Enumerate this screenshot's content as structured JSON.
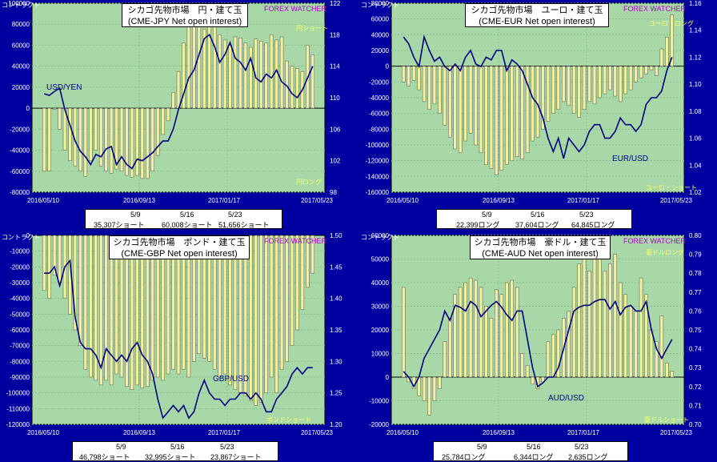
{
  "ylabel": "コントラクト",
  "watermark": "FOREX WATCHER",
  "colors": {
    "bg": "#0000a0",
    "plot": "#a8d8a8",
    "bar": "#f0f0a0",
    "line": "#000080",
    "grid": "#88c088"
  },
  "charts": [
    {
      "title1": "シカゴ先物市場　円・建て玉",
      "title2": "(CME-JPY Net open interest)",
      "series_label": "USD/YEN",
      "top_label": "円ショート",
      "bottom_label": "円ロング",
      "dates": [
        "5/9",
        "5/16",
        "5/23"
      ],
      "values": [
        "35,307ショート",
        "60,008ショート",
        "51,656ショート"
      ]
    },
    {
      "title1": "シカゴ先物市場　ユーロ・建て玉",
      "title2": "(CME-EUR Net open interest)",
      "series_label": "EUR/USD",
      "top_label": "ユーロ・ロング",
      "bottom_label": "ユーロ・ショート",
      "dates": [
        "5/9",
        "5/16",
        "5/23"
      ],
      "values": [
        "22,399ロング",
        "37,604ロング",
        "64,845ロング"
      ]
    },
    {
      "title1": "シカゴ先物市場　ポンド・建て玉",
      "title2": "(CME-GBP Net open interest)",
      "series_label": "GBP/USD",
      "top_label": "",
      "bottom_label": "ポンドショート",
      "dates": [
        "5/9",
        "5/16",
        "5/23"
      ],
      "values": [
        "46,798ショート",
        "32,995ショート",
        "23,867ショート"
      ]
    },
    {
      "title1": "シカゴ先物市場　豪ドル・建て玉",
      "title2": "(CME-AUD Net open interest)",
      "series_label": "AUD/USD",
      "top_label": "豪ドルロング",
      "bottom_label": "豪ドルショート",
      "dates": [
        "5/9",
        "5/16",
        "5/23"
      ],
      "values": [
        "25,784ロング",
        "6,344ロング",
        "2,635ロング"
      ]
    }
  ],
  "chart_data": [
    {
      "type": "bar",
      "title": "シカゴ先物市場　円・建て玉 (CME-JPY Net open interest)",
      "x_tick_labels": [
        "2016/05/10",
        "2016/09/13",
        "2017/01/17",
        "2017/05/23"
      ],
      "y_ticks": [
        "100000",
        "80000",
        "60000",
        "40000",
        "20000",
        "0",
        "-20000",
        "-40000",
        "-60000",
        "-80000"
      ],
      "y_right_ticks": [
        "122",
        "118",
        "114",
        "110",
        "106",
        "102",
        "98"
      ],
      "ylim": [
        -80000,
        100000
      ],
      "y2lim": [
        98,
        122
      ],
      "series": [
        {
          "name": "net_open_interest",
          "axis": "left",
          "values": [
            -60000,
            -60000,
            -1000,
            -20000,
            -40000,
            -50000,
            -55000,
            -60000,
            -65000,
            -50000,
            -40000,
            -55000,
            -60000,
            -62000,
            -58000,
            -60000,
            -64000,
            -66000,
            -64000,
            -67000,
            -67000,
            -60000,
            -45000,
            -25000,
            -12000,
            15000,
            35000,
            62000,
            84000,
            87000,
            85000,
            75000,
            80000,
            82000,
            70000,
            65000,
            60000,
            68000,
            67000,
            62000,
            58000,
            66000,
            64000,
            62000,
            70000,
            65000,
            68000,
            45000,
            40000,
            38000,
            35000,
            60000,
            51000
          ]
        },
        {
          "name": "USD/YEN",
          "axis": "right",
          "values": [
            110.5,
            110.3,
            110.8,
            111.2,
            108.5,
            106.5,
            104.5,
            103.2,
            102.5,
            101.5,
            102.8,
            102.5,
            103.5,
            103.8,
            101.5,
            102.5,
            101.5,
            101.0,
            102.2,
            102.0,
            102.5,
            103.0,
            103.8,
            104.5,
            104.5,
            106.0,
            108.5,
            110.5,
            112.5,
            113.5,
            115.5,
            117.5,
            118.0,
            116.5,
            114.5,
            115.5,
            117.0,
            115.0,
            114.5,
            113.5,
            115.0,
            112.5,
            112.0,
            113.0,
            112.5,
            113.5,
            112.0,
            111.5,
            110.5,
            110.0,
            111.0,
            112.5,
            114.0
          ]
        }
      ]
    },
    {
      "type": "bar",
      "title": "シカゴ先物市場　ユーロ・建て玉 (CME-EUR Net open interest)",
      "x_tick_labels": [
        "2016/05/10",
        "2016/09/13",
        "2017/01/17",
        "2017/05/23"
      ],
      "y_ticks": [
        "80000",
        "60000",
        "40000",
        "20000",
        "0",
        "-20000",
        "-40000",
        "-60000",
        "-80000",
        "-100000",
        "-120000",
        "-140000",
        "-160000"
      ],
      "y_right_ticks": [
        "1.16",
        "1.14",
        "1.12",
        "1.10",
        "1.08",
        "1.06",
        "1.04",
        "1.02"
      ],
      "ylim": [
        -160000,
        80000
      ],
      "y2lim": [
        1.02,
        1.16
      ],
      "series": [
        {
          "name": "net_open_interest",
          "axis": "left",
          "values": [
            -20000,
            -25000,
            -18000,
            -30000,
            -45000,
            -55000,
            -48000,
            -60000,
            -75000,
            -90000,
            -105000,
            -110000,
            -95000,
            -85000,
            -100000,
            -110000,
            -125000,
            -130000,
            -138000,
            -132000,
            -125000,
            -120000,
            -115000,
            -118000,
            -110000,
            -95000,
            -90000,
            -80000,
            -70000,
            -60000,
            -55000,
            -45000,
            -50000,
            -60000,
            -65000,
            -55000,
            -45000,
            -48000,
            -40000,
            -35000,
            -30000,
            -38000,
            -45000,
            -35000,
            -30000,
            -20000,
            -15000,
            -10000,
            -5000,
            -12000,
            22000,
            37000,
            65000
          ]
        },
        {
          "name": "EUR/USD",
          "axis": "right",
          "values": [
            1.135,
            1.13,
            1.12,
            1.113,
            1.135,
            1.125,
            1.117,
            1.12,
            1.113,
            1.11,
            1.115,
            1.11,
            1.12,
            1.125,
            1.115,
            1.113,
            1.12,
            1.118,
            1.125,
            1.125,
            1.11,
            1.118,
            1.115,
            1.11,
            1.1,
            1.09,
            1.085,
            1.075,
            1.06,
            1.05,
            1.06,
            1.045,
            1.06,
            1.055,
            1.05,
            1.055,
            1.065,
            1.07,
            1.07,
            1.06,
            1.06,
            1.065,
            1.075,
            1.07,
            1.07,
            1.065,
            1.07,
            1.085,
            1.09,
            1.09,
            1.095,
            1.11,
            1.12
          ]
        }
      ]
    },
    {
      "type": "bar",
      "title": "シカゴ先物市場　ポンド・建て玉 (CME-GBP Net open interest)",
      "x_tick_labels": [
        "2016/05/10",
        "2016/09/13",
        "2017/01/17",
        "2017/05/23"
      ],
      "y_ticks": [
        "0",
        "-10000",
        "-20000",
        "-30000",
        "-40000",
        "-50000",
        "-60000",
        "-70000",
        "-80000",
        "-90000",
        "-100000",
        "-110000",
        "-120000"
      ],
      "y_right_ticks": [
        "1.50",
        "1.45",
        "1.40",
        "1.35",
        "1.30",
        "1.25",
        "1.20"
      ],
      "ylim": [
        -120000,
        0
      ],
      "y2lim": [
        1.2,
        1.5
      ],
      "series": [
        {
          "name": "net_open_interest",
          "axis": "left",
          "values": [
            -35000,
            -40000,
            -25000,
            -30000,
            -40000,
            -50000,
            -60000,
            -70000,
            -85000,
            -90000,
            -92000,
            -95000,
            -92000,
            -95000,
            -88000,
            -90000,
            -96000,
            -98000,
            -95000,
            -97000,
            -96000,
            -92000,
            -90000,
            -92000,
            -88000,
            -85000,
            -88000,
            -85000,
            -90000,
            -80000,
            -75000,
            -78000,
            -80000,
            -85000,
            -90000,
            -88000,
            -95000,
            -98000,
            -100000,
            -102000,
            -105000,
            -108000,
            -106000,
            -100000,
            -90000,
            -100000,
            -85000,
            -80000,
            -70000,
            -60000,
            -47000,
            -33000,
            -24000
          ]
        },
        {
          "name": "GBP/USD",
          "axis": "right",
          "values": [
            1.44,
            1.44,
            1.45,
            1.42,
            1.45,
            1.46,
            1.37,
            1.33,
            1.32,
            1.32,
            1.31,
            1.29,
            1.32,
            1.31,
            1.3,
            1.31,
            1.3,
            1.32,
            1.33,
            1.31,
            1.3,
            1.28,
            1.24,
            1.21,
            1.22,
            1.23,
            1.22,
            1.23,
            1.21,
            1.22,
            1.25,
            1.27,
            1.25,
            1.24,
            1.24,
            1.23,
            1.24,
            1.24,
            1.25,
            1.25,
            1.24,
            1.25,
            1.24,
            1.22,
            1.22,
            1.24,
            1.25,
            1.26,
            1.28,
            1.29,
            1.28,
            1.29,
            1.29
          ]
        }
      ]
    },
    {
      "type": "bar",
      "title": "シカゴ先物市場　豪ドル・建て玉 (CME-AUD Net open interest)",
      "x_tick_labels": [
        "2016/05/10",
        "2016/09/13",
        "2017/01/17",
        "2017/05/23"
      ],
      "y_ticks": [
        "60000",
        "50000",
        "40000",
        "30000",
        "20000",
        "10000",
        "0",
        "-10000",
        "-20000"
      ],
      "y_right_ticks": [
        "0.80",
        "0.79",
        "0.78",
        "0.77",
        "0.76",
        "0.75",
        "0.74",
        "0.73",
        "0.72",
        "0.71",
        "0.70"
      ],
      "ylim": [
        -20000,
        60000
      ],
      "y2lim": [
        0.7,
        0.8
      ],
      "series": [
        {
          "name": "net_open_interest",
          "axis": "left",
          "values": [
            38000,
            -2000,
            -5000,
            -8000,
            -10000,
            -16000,
            -10000,
            -5000,
            15000,
            25000,
            35000,
            38000,
            40000,
            42000,
            41000,
            38000,
            30000,
            25000,
            37000,
            35000,
            40000,
            41000,
            38000,
            10000,
            5000,
            -3000,
            -5000,
            -2000,
            15000,
            18000,
            20000,
            25000,
            28000,
            38000,
            48000,
            52000,
            45000,
            50000,
            55000,
            45000,
            48000,
            52000,
            40000,
            35000,
            30000,
            28000,
            42000,
            35000,
            20000,
            15000,
            26000,
            6000,
            2600
          ]
        },
        {
          "name": "AUD/USD",
          "axis": "right",
          "values": [
            0.728,
            0.725,
            0.72,
            0.725,
            0.735,
            0.74,
            0.745,
            0.75,
            0.76,
            0.755,
            0.763,
            0.762,
            0.76,
            0.765,
            0.763,
            0.757,
            0.76,
            0.763,
            0.765,
            0.762,
            0.758,
            0.755,
            0.76,
            0.76,
            0.745,
            0.73,
            0.72,
            0.722,
            0.725,
            0.725,
            0.73,
            0.74,
            0.75,
            0.76,
            0.762,
            0.763,
            0.763,
            0.765,
            0.766,
            0.766,
            0.761,
            0.765,
            0.758,
            0.762,
            0.763,
            0.76,
            0.76,
            0.765,
            0.75,
            0.74,
            0.735,
            0.74,
            0.745
          ]
        }
      ]
    }
  ]
}
